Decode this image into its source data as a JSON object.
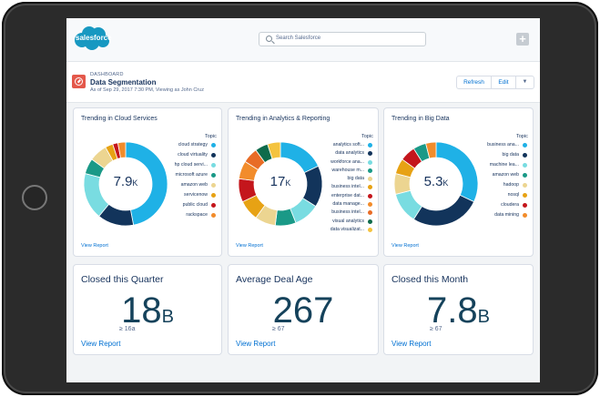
{
  "header": {
    "logo_text": "salesforce",
    "search_placeholder": "Search Salesforce"
  },
  "dashboard": {
    "kicker": "DASHBOARD",
    "title": "Data Segmentation",
    "subtitle": "As of Sep 29, 2017 7:30 PM, Viewing as John Cruz",
    "refresh_label": "Refresh",
    "edit_label": "Edit",
    "more_icon": "chevron-down-icon"
  },
  "colors": {
    "accent": "#0070d2",
    "brand": "#1798c1",
    "alert": "#e4584b"
  },
  "donuts": [
    {
      "title": "Trending in Cloud Services",
      "center_value": "7.9",
      "center_unit": "K",
      "topic_label": "Topic",
      "view_report": "View Report",
      "legend": [
        {
          "label": "cloud strategy",
          "color": "#1fb1e6"
        },
        {
          "label": "cloud virtuality",
          "color": "#12345b"
        },
        {
          "label": "hp cloud servi...",
          "color": "#79dce1"
        },
        {
          "label": "microsoft azure",
          "color": "#1a9987"
        },
        {
          "label": "amazon web",
          "color": "#ecd591"
        },
        {
          "label": "servicenow",
          "color": "#e7a214"
        },
        {
          "label": "public cloud",
          "color": "#c4161c"
        },
        {
          "label": "rackspace",
          "color": "#f28c2b"
        }
      ],
      "segments": [
        {
          "value": 47,
          "color": "#1fb1e6"
        },
        {
          "value": 14,
          "color": "#12345b"
        },
        {
          "value": 18,
          "color": "#79dce1"
        },
        {
          "value": 6,
          "color": "#1a9987"
        },
        {
          "value": 7,
          "color": "#ecd591"
        },
        {
          "value": 3,
          "color": "#e7a214"
        },
        {
          "value": 2,
          "color": "#c4161c"
        },
        {
          "value": 3,
          "color": "#f28c2b"
        }
      ]
    },
    {
      "title": "Trending in Analytics & Reporting",
      "center_value": "17",
      "center_unit": "K",
      "topic_label": "Topic",
      "view_report": "View Report",
      "legend": [
        {
          "label": "analytics soft...",
          "color": "#1fb1e6"
        },
        {
          "label": "data analytics",
          "color": "#12345b"
        },
        {
          "label": "workforce ana...",
          "color": "#79dce1"
        },
        {
          "label": "warehouse m...",
          "color": "#1a9987"
        },
        {
          "label": "big data",
          "color": "#ecd591"
        },
        {
          "label": "business intel...",
          "color": "#e7a214"
        },
        {
          "label": "enterprise dat...",
          "color": "#c4161c"
        },
        {
          "label": "data manage...",
          "color": "#f28c2b"
        },
        {
          "label": "business intel...",
          "color": "#e86c26"
        },
        {
          "label": "visual analytics",
          "color": "#0e6b4b"
        },
        {
          "label": "data visualizat...",
          "color": "#f4c33f"
        }
      ],
      "segments": [
        {
          "value": 18,
          "color": "#1fb1e6"
        },
        {
          "value": 16,
          "color": "#12345b"
        },
        {
          "value": 10,
          "color": "#79dce1"
        },
        {
          "value": 8,
          "color": "#1a9987"
        },
        {
          "value": 8,
          "color": "#ecd591"
        },
        {
          "value": 8,
          "color": "#e7a214"
        },
        {
          "value": 9,
          "color": "#c4161c"
        },
        {
          "value": 7,
          "color": "#f28c2b"
        },
        {
          "value": 6,
          "color": "#e86c26"
        },
        {
          "value": 5,
          "color": "#0e6b4b"
        },
        {
          "value": 5,
          "color": "#f4c33f"
        }
      ]
    },
    {
      "title": "Trending in Big Data",
      "center_value": "5.3",
      "center_unit": "K",
      "topic_label": "Topic",
      "view_report": "View Report",
      "legend": [
        {
          "label": "business ana...",
          "color": "#1fb1e6"
        },
        {
          "label": "big data",
          "color": "#12345b"
        },
        {
          "label": "machine lea...",
          "color": "#79dce1"
        },
        {
          "label": "amazon web",
          "color": "#1a9987"
        },
        {
          "label": "hadoop",
          "color": "#ecd591"
        },
        {
          "label": "nosql",
          "color": "#e7a214"
        },
        {
          "label": "cloudera",
          "color": "#c4161c"
        },
        {
          "label": "data mining",
          "color": "#f28c2b"
        }
      ],
      "segments": [
        {
          "value": 32,
          "color": "#1fb1e6"
        },
        {
          "value": 27,
          "color": "#12345b"
        },
        {
          "value": 12,
          "color": "#79dce1"
        },
        {
          "value": 8,
          "color": "#ecd591"
        },
        {
          "value": 6,
          "color": "#e7a214"
        },
        {
          "value": 6,
          "color": "#c4161c"
        },
        {
          "value": 5,
          "color": "#1a9987"
        },
        {
          "value": 4,
          "color": "#f28c2b"
        }
      ]
    }
  ],
  "metrics": [
    {
      "title": "Closed this Quarter",
      "value": "18",
      "unit": "B",
      "sub": "≥ 16a",
      "view_report": "View Report"
    },
    {
      "title": "Average Deal Age",
      "value": "267",
      "unit": "",
      "sub": "≥ 67",
      "view_report": "View Report"
    },
    {
      "title": "Closed this Month",
      "value": "7.8",
      "unit": "B",
      "sub": "≥ 67",
      "view_report": "View Report"
    }
  ]
}
